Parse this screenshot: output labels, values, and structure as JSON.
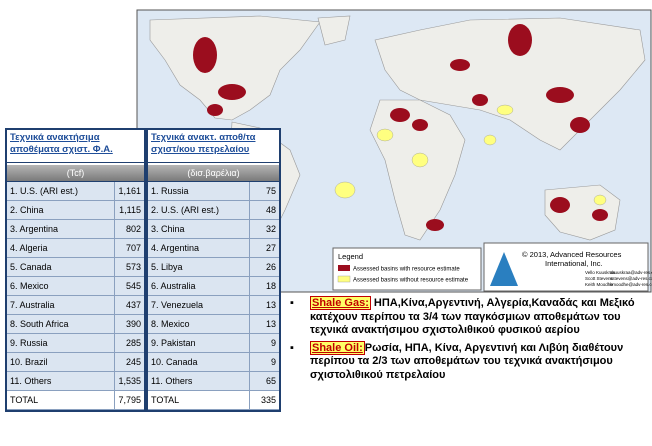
{
  "map": {
    "legend_title": "Legend",
    "legend_items": [
      "Assessed basins with resource estimate",
      "Assessed basins without resource estimate"
    ],
    "credit": [
      "© 2013, Advanced Resources",
      "International, Inc."
    ],
    "authors": [
      [
        "Vello Kuuskraa",
        "vkuuskraa@adv-res.com"
      ],
      [
        "Scott Stevens",
        "sstevens@adv-res.com"
      ],
      [
        "Keith Moodhe",
        "kmoodhe@adv-res.com"
      ]
    ]
  },
  "tables": [
    {
      "title": "Τεχνικά ανακτήσιμα αποθέματα σχιστ. Φ.Α.",
      "unit": "(Tcf)",
      "rows": [
        [
          "1. U.S. (ARI est.)",
          "1,161"
        ],
        [
          "2. China",
          "1,115"
        ],
        [
          "3. Argentina",
          "802"
        ],
        [
          "4. Algeria",
          "707"
        ],
        [
          "5. Canada",
          "573"
        ],
        [
          "6. Mexico",
          "545"
        ],
        [
          "7. Australia",
          "437"
        ],
        [
          "8. South Africa",
          "390"
        ],
        [
          "9. Russia",
          "285"
        ],
        [
          "10. Brazil",
          "245"
        ],
        [
          "11. Others",
          "1,535"
        ],
        [
          "TOTAL",
          "7,795"
        ]
      ]
    },
    {
      "title": "Τεχνικά ανακτ. αποθ/τα σχιστ/κου πετρελαίου",
      "unit": "(δισ.βαρέλια)",
      "rows": [
        [
          "1. Russia",
          "75"
        ],
        [
          "2. U.S. (ARI est.)",
          "48"
        ],
        [
          "3. China",
          "32"
        ],
        [
          "4. Argentina",
          "27"
        ],
        [
          "5. Libya",
          "26"
        ],
        [
          "6. Australia",
          "18"
        ],
        [
          "7. Venezuela",
          "13"
        ],
        [
          "8. Mexico",
          "13"
        ],
        [
          "9. Pakistan",
          "9"
        ],
        [
          "10. Canada",
          "9"
        ],
        [
          "11. Others",
          "65"
        ],
        [
          "TOTAL",
          "335"
        ]
      ]
    }
  ],
  "bullets": [
    {
      "label": "Shale Gas:",
      "text": " ΗΠΑ,Κίνα,Αργεντινή, Αλγερία,Καναδάς και Μεξικό κατέχουν περίπου τα 3/4 των παγκόσμιων αποθεμάτων του τεχνικά ανακτήσιμου σχιστολιθικού φυσικού αερίου"
    },
    {
      "label": "Shale Oil:",
      "text": "Ρωσία, ΗΠΑ, Κίνα, Αργεντινή και Λιβύη διαθέτουν περίπου τα 2/3 των αποθεμάτων του τεχνικά ανακτήσιμου σχιστολιθικού πετρελαίου"
    }
  ]
}
